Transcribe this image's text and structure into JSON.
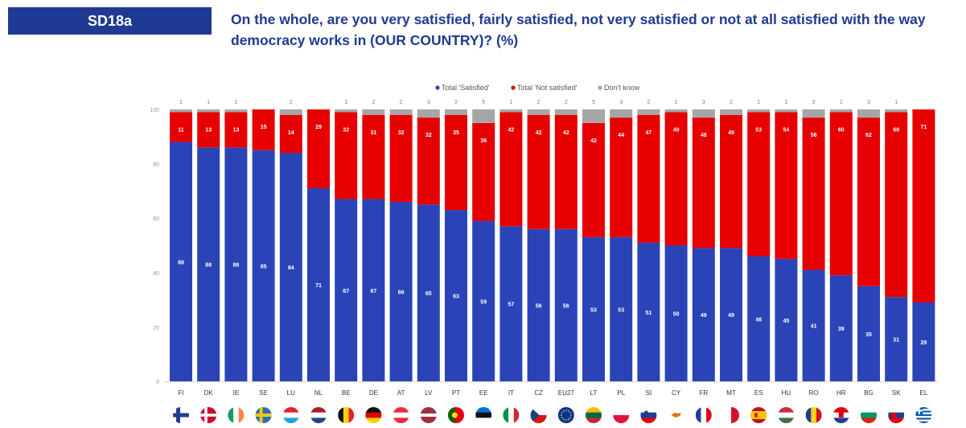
{
  "header": {
    "badge": "SD18a",
    "question": "On the whole, are you very satisfied, fairly satisfied, not very satisfied or not at all satisfied with the way democracy works in (OUR COUNTRY)? (%)"
  },
  "colors": {
    "satisfied": "#2a44b8",
    "not_satisfied": "#e60000",
    "dont_know": "#a6a6a6",
    "title": "#1f3a93"
  },
  "chart_data": {
    "type": "bar",
    "stacked": true,
    "categories": [
      "FI",
      "DK",
      "IE",
      "SE",
      "LU",
      "NL",
      "BE",
      "DE",
      "AT",
      "LV",
      "PT",
      "EE",
      "IT",
      "CZ",
      "EU27",
      "LT",
      "PL",
      "SI",
      "CY",
      "FR",
      "MT",
      "ES",
      "HU",
      "RO",
      "HR",
      "BG",
      "SK",
      "EL"
    ],
    "series": [
      {
        "name": "Total 'Satisfied'",
        "values": [
          88,
          86,
          86,
          85,
          84,
          71,
          67,
          67,
          66,
          65,
          63,
          59,
          57,
          56,
          56,
          53,
          53,
          51,
          50,
          49,
          49,
          46,
          45,
          41,
          39,
          35,
          31,
          29
        ]
      },
      {
        "name": "Total 'Not satisfied'",
        "values": [
          11,
          13,
          13,
          15,
          14,
          29,
          32,
          31,
          32,
          32,
          35,
          36,
          42,
          42,
          42,
          42,
          44,
          47,
          49,
          48,
          49,
          53,
          54,
          56,
          60,
          62,
          68,
          71
        ]
      },
      {
        "name": "Don't know",
        "values": [
          1,
          1,
          1,
          0,
          2,
          0,
          1,
          2,
          2,
          3,
          2,
          5,
          1,
          2,
          2,
          5,
          3,
          2,
          1,
          3,
          2,
          1,
          1,
          3,
          1,
          3,
          1,
          0
        ]
      }
    ],
    "top_labels": [
      "1",
      "1",
      "1",
      "",
      "2",
      "",
      "1",
      "2",
      "2",
      "3",
      "2",
      "5",
      "1",
      "2",
      "2",
      "5",
      "3",
      "2",
      "1",
      "3",
      "2",
      "1",
      "1",
      "3",
      "1",
      "3",
      "1",
      ""
    ],
    "yticks": [
      "0",
      "20",
      "40",
      "60",
      "80",
      "100"
    ],
    "ylim": [
      0,
      100
    ],
    "legend_position": "top-center",
    "flag_icons": [
      "flag-fi-icon",
      "flag-dk-icon",
      "flag-ie-icon",
      "flag-se-icon",
      "flag-lu-icon",
      "flag-nl-icon",
      "flag-be-icon",
      "flag-de-icon",
      "flag-at-icon",
      "flag-lv-icon",
      "flag-pt-icon",
      "flag-ee-icon",
      "flag-it-icon",
      "flag-cz-icon",
      "flag-eu-icon",
      "flag-lt-icon",
      "flag-pl-icon",
      "flag-si-icon",
      "flag-cy-icon",
      "flag-fr-icon",
      "flag-mt-icon",
      "flag-es-icon",
      "flag-hu-icon",
      "flag-ro-icon",
      "flag-hr-icon",
      "flag-bg-icon",
      "flag-sk-icon",
      "flag-gr-icon"
    ]
  }
}
